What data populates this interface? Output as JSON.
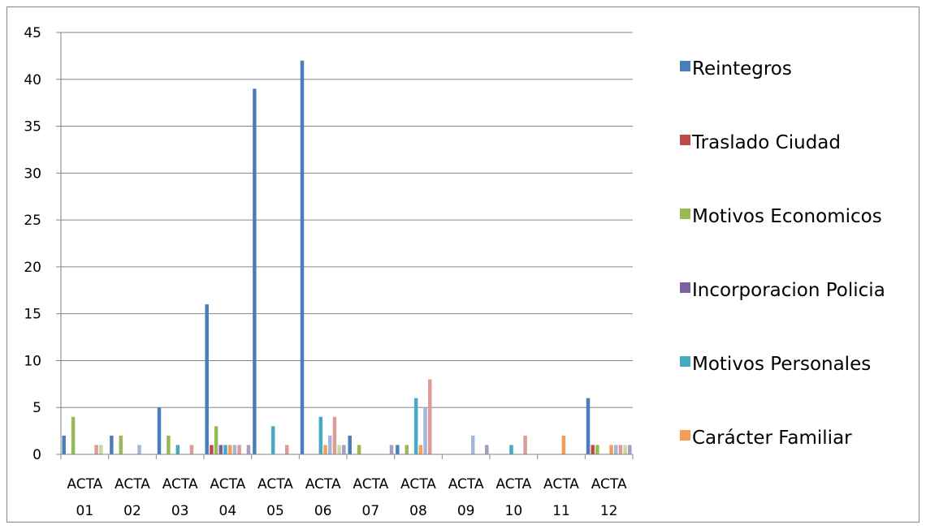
{
  "chart_data": {
    "type": "bar",
    "title": "",
    "xlabel": "",
    "ylabel": "",
    "ylim": [
      0,
      45
    ],
    "y_ticks": [
      "0",
      "5",
      "10",
      "15",
      "20",
      "25",
      "30",
      "35",
      "40",
      "45"
    ],
    "grid": true,
    "legend_position": "right",
    "categories": [
      "ACTA 01",
      "ACTA 02",
      "ACTA 03",
      "ACTA 04",
      "ACTA 05",
      "ACTA 06",
      "ACTA 07",
      "ACTA 08",
      "ACTA 09",
      "ACTA 10",
      "ACTA 11",
      "ACTA 12"
    ],
    "category_lines": [
      [
        "ACTA",
        "01"
      ],
      [
        "ACTA",
        "02"
      ],
      [
        "ACTA",
        "03"
      ],
      [
        "ACTA",
        "04"
      ],
      [
        "ACTA",
        "05"
      ],
      [
        "ACTA",
        "06"
      ],
      [
        "ACTA",
        "07"
      ],
      [
        "ACTA",
        "08"
      ],
      [
        "ACTA",
        "09"
      ],
      [
        "ACTA",
        "10"
      ],
      [
        "ACTA",
        "11"
      ],
      [
        "ACTA",
        "12"
      ]
    ],
    "series": [
      {
        "name": "Reintegros",
        "color": "#4a7ebb",
        "values": [
          2,
          2,
          5,
          16,
          39,
          42,
          2,
          1,
          0,
          0,
          0,
          6
        ]
      },
      {
        "name": "Traslado Ciudad",
        "color": "#be4b48",
        "values": [
          0,
          0,
          0,
          1,
          0,
          0,
          0,
          0,
          0,
          0,
          0,
          1
        ]
      },
      {
        "name": "Motivos Economicos",
        "color": "#98b954",
        "values": [
          4,
          2,
          2,
          3,
          0,
          0,
          1,
          1,
          0,
          0,
          0,
          1
        ]
      },
      {
        "name": "Incorporacion Policia",
        "color": "#7d60a0",
        "values": [
          0,
          0,
          0,
          1,
          0,
          0,
          0,
          0,
          0,
          0,
          0,
          0
        ]
      },
      {
        "name": "Motivos Personales",
        "color": "#46aac5",
        "values": [
          0,
          0,
          1,
          1,
          3,
          4,
          0,
          6,
          0,
          1,
          0,
          0
        ]
      },
      {
        "name": "Carácter Familiar",
        "color": "#f59d56",
        "values": [
          0,
          0,
          0,
          1,
          0,
          1,
          0,
          1,
          0,
          0,
          2,
          1
        ]
      },
      {
        "name": "",
        "color": "#a3b5d9",
        "values": [
          0,
          1,
          0,
          1,
          0,
          2,
          0,
          5,
          2,
          0,
          0,
          1
        ]
      },
      {
        "name": "",
        "color": "#dc9a99",
        "values": [
          1,
          0,
          1,
          1,
          1,
          4,
          0,
          8,
          0,
          2,
          0,
          1
        ]
      },
      {
        "name": "",
        "color": "#c5d9a0",
        "values": [
          1,
          0,
          0,
          0,
          0,
          1,
          0,
          0,
          0,
          0,
          0,
          1
        ]
      },
      {
        "name": "",
        "color": "#a99cc0",
        "values": [
          0,
          0,
          0,
          1,
          0,
          1,
          1,
          0,
          1,
          0,
          0,
          1
        ]
      }
    ],
    "legend_entries": [
      "Reintegros",
      "Traslado Ciudad",
      "Motivos Economicos",
      "Incorporacion Policia",
      "Motivos Personales",
      "Carácter Familiar"
    ]
  }
}
